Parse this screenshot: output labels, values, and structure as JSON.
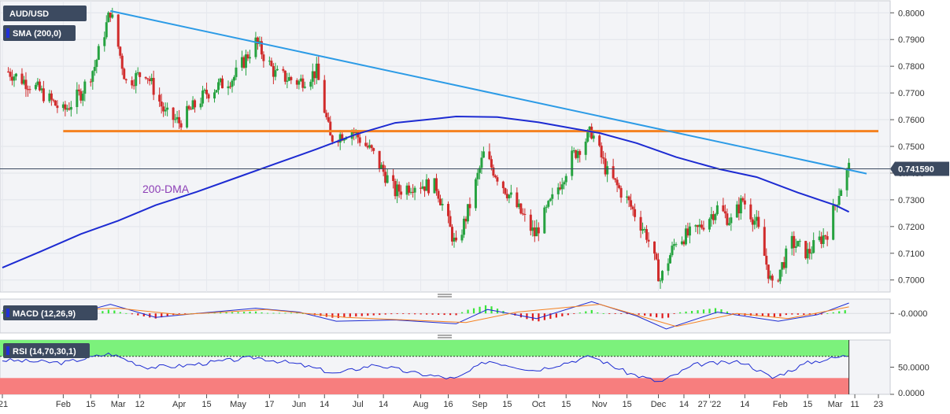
{
  "chart_data": {
    "type": "candlestick",
    "symbol_label": "AUD/USD",
    "price_label": "0.741590",
    "price_current": 0.74159,
    "main": {
      "ylim": [
        0.6955,
        0.8045
      ],
      "y_ticks": [
        "0.8000",
        "0.7900",
        "0.7800",
        "0.7700",
        "0.7600",
        "0.7500",
        "0.7400",
        "0.7300",
        "0.7200",
        "0.7100",
        "0.7000"
      ],
      "y_tick_values": [
        0.8,
        0.79,
        0.78,
        0.77,
        0.76,
        0.75,
        0.74,
        0.73,
        0.72,
        0.71,
        0.7
      ],
      "indicator_label": "SMA (200,0)",
      "annotation": "200-DMA",
      "horizontal_level": 0.7557,
      "trendline": {
        "start": {
          "date": "2021-02-25",
          "price": 0.8007
        },
        "end": {
          "date": "2022-03-17",
          "price": 0.7398
        }
      },
      "sma200": [
        [
          "2021-01-01",
          0.7046
        ],
        [
          "2021-01-20",
          0.7105
        ],
        [
          "2021-02-10",
          0.7172
        ],
        [
          "2021-03-01",
          0.7222
        ],
        [
          "2021-03-20",
          0.728
        ],
        [
          "2021-04-10",
          0.733
        ],
        [
          "2021-05-01",
          0.7385
        ],
        [
          "2021-05-20",
          0.7435
        ],
        [
          "2021-06-10",
          0.749
        ],
        [
          "2021-06-30",
          0.7545
        ],
        [
          "2021-07-20",
          0.7588
        ],
        [
          "2021-08-10",
          0.7604
        ],
        [
          "2021-08-20",
          0.7612
        ],
        [
          "2021-09-10",
          0.761
        ],
        [
          "2021-10-01",
          0.759
        ],
        [
          "2021-10-20",
          0.7565
        ],
        [
          "2021-11-01",
          0.755
        ],
        [
          "2021-11-20",
          0.7512
        ],
        [
          "2021-12-10",
          0.746
        ],
        [
          "2022-01-01",
          0.7415
        ],
        [
          "2022-01-20",
          0.7385
        ],
        [
          "2022-02-10",
          0.7327
        ],
        [
          "2022-03-01",
          0.728
        ],
        [
          "2022-03-08",
          0.7255
        ]
      ],
      "candles": [
        [
          "2021-01-04",
          0.778
        ],
        [
          "2021-01-18",
          0.772
        ],
        [
          "2021-02-01",
          0.763
        ],
        [
          "2021-02-10",
          0.77
        ],
        [
          "2021-02-17",
          0.78
        ],
        [
          "2021-02-25",
          0.8007
        ],
        [
          "2021-03-05",
          0.774
        ],
        [
          "2021-03-15",
          0.778
        ],
        [
          "2021-03-25",
          0.762
        ],
        [
          "2021-04-01",
          0.759
        ],
        [
          "2021-04-15",
          0.77
        ],
        [
          "2021-04-29",
          0.776
        ],
        [
          "2021-05-10",
          0.789
        ],
        [
          "2021-05-20",
          0.777
        ],
        [
          "2021-06-01",
          0.774
        ],
        [
          "2021-06-10",
          0.778
        ],
        [
          "2021-06-17",
          0.753
        ],
        [
          "2021-06-28",
          0.756
        ],
        [
          "2021-07-08",
          0.748
        ],
        [
          "2021-07-20",
          0.733
        ],
        [
          "2021-07-30",
          0.736
        ],
        [
          "2021-08-10",
          0.735
        ],
        [
          "2021-08-20",
          0.712
        ],
        [
          "2021-08-27",
          0.728
        ],
        [
          "2021-09-03",
          0.747
        ],
        [
          "2021-09-15",
          0.733
        ],
        [
          "2021-09-29",
          0.717
        ],
        [
          "2021-10-08",
          0.73
        ],
        [
          "2021-10-18",
          0.746
        ],
        [
          "2021-10-28",
          0.7555
        ],
        [
          "2021-11-05",
          0.74
        ],
        [
          "2021-11-15",
          0.73
        ],
        [
          "2021-11-25",
          0.717
        ],
        [
          "2021-12-02",
          0.7
        ],
        [
          "2021-12-10",
          0.715
        ],
        [
          "2021-12-20",
          0.718
        ],
        [
          "2021-12-31",
          0.727
        ],
        [
          "2022-01-07",
          0.722
        ],
        [
          "2022-01-13",
          0.73
        ],
        [
          "2022-01-20",
          0.721
        ],
        [
          "2022-01-28",
          0.697
        ],
        [
          "2022-02-07",
          0.714
        ],
        [
          "2022-02-15",
          0.71
        ],
        [
          "2022-02-25",
          0.718
        ],
        [
          "2022-03-03",
          0.733
        ],
        [
          "2022-03-08",
          0.742
        ]
      ]
    },
    "x_tick_labels": [
      "'21",
      "Feb",
      "15",
      "Mar",
      "12",
      "Apr",
      "15",
      "May",
      "17",
      "Jun",
      "14",
      "Jul",
      "14",
      "Aug",
      "16",
      "Sep",
      "15",
      "Oct",
      "15",
      "Nov",
      "15",
      "Dec",
      "14",
      "27 '22",
      "14",
      "Feb",
      "15",
      "Mar",
      "11",
      "23"
    ],
    "x_tick_dates": [
      "2021-01-01",
      "2021-02-01",
      "2021-02-15",
      "2021-03-01",
      "2021-03-12",
      "2021-04-01",
      "2021-04-15",
      "2021-05-01",
      "2021-05-17",
      "2021-06-01",
      "2021-06-14",
      "2021-07-01",
      "2021-07-14",
      "2021-08-02",
      "2021-08-16",
      "2021-09-01",
      "2021-09-15",
      "2021-10-01",
      "2021-10-15",
      "2021-11-01",
      "2021-11-15",
      "2021-12-01",
      "2021-12-14",
      "2021-12-27",
      "2022-01-14",
      "2022-02-01",
      "2022-02-15",
      "2022-03-01",
      "2022-03-11",
      "2022-03-23"
    ],
    "macd": {
      "label": "MACD (12,26,9)",
      "y_tick": "-0.0000",
      "y_tick_value": 0,
      "ylim": [
        -0.015,
        0.011
      ],
      "macd_line": [
        [
          "2021-01-01",
          0.002
        ],
        [
          "2021-02-10",
          0.001
        ],
        [
          "2021-02-25",
          0.007
        ],
        [
          "2021-03-20",
          -0.003
        ],
        [
          "2021-04-10",
          0.0
        ],
        [
          "2021-05-10",
          0.004
        ],
        [
          "2021-06-01",
          0.001
        ],
        [
          "2021-06-20",
          -0.006
        ],
        [
          "2021-07-20",
          -0.005
        ],
        [
          "2021-08-20",
          -0.008
        ],
        [
          "2021-09-05",
          0.003
        ],
        [
          "2021-09-30",
          -0.004
        ],
        [
          "2021-10-28",
          0.009
        ],
        [
          "2021-11-20",
          -0.002
        ],
        [
          "2021-12-05",
          -0.012
        ],
        [
          "2021-12-31",
          0.001
        ],
        [
          "2022-01-31",
          -0.006
        ],
        [
          "2022-02-20",
          -0.001
        ],
        [
          "2022-03-08",
          0.008
        ]
      ],
      "signal_line": [
        [
          "2021-01-01",
          0.001
        ],
        [
          "2021-03-01",
          0.004
        ],
        [
          "2021-04-01",
          -0.001
        ],
        [
          "2021-05-15",
          0.003
        ],
        [
          "2021-06-25",
          -0.003
        ],
        [
          "2021-08-25",
          -0.007
        ],
        [
          "2021-09-20",
          0.001
        ],
        [
          "2021-11-01",
          0.007
        ],
        [
          "2021-12-10",
          -0.01
        ],
        [
          "2022-01-10",
          0.0
        ],
        [
          "2022-02-05",
          -0.004
        ],
        [
          "2022-03-08",
          0.005
        ]
      ]
    },
    "rsi": {
      "label": "RSI (14,70,30,1)",
      "y_ticks": [
        "50.0000",
        "0.0000"
      ],
      "y_tick_values": [
        50,
        0
      ],
      "ylim": [
        0,
        100
      ],
      "overbought": 70,
      "oversold": 30,
      "values": [
        [
          "2021-01-01",
          63
        ],
        [
          "2021-02-01",
          58
        ],
        [
          "2021-02-25",
          75
        ],
        [
          "2021-03-15",
          50
        ],
        [
          "2021-04-01",
          52
        ],
        [
          "2021-05-10",
          68
        ],
        [
          "2021-06-01",
          55
        ],
        [
          "2021-06-20",
          38
        ],
        [
          "2021-07-10",
          55
        ],
        [
          "2021-07-28",
          40
        ],
        [
          "2021-08-20",
          28
        ],
        [
          "2021-09-05",
          62
        ],
        [
          "2021-09-29",
          44
        ],
        [
          "2021-10-28",
          70
        ],
        [
          "2021-11-15",
          40
        ],
        [
          "2021-12-02",
          22
        ],
        [
          "2021-12-20",
          55
        ],
        [
          "2022-01-13",
          60
        ],
        [
          "2022-01-28",
          30
        ],
        [
          "2022-02-15",
          58
        ],
        [
          "2022-03-08",
          72
        ]
      ]
    }
  }
}
